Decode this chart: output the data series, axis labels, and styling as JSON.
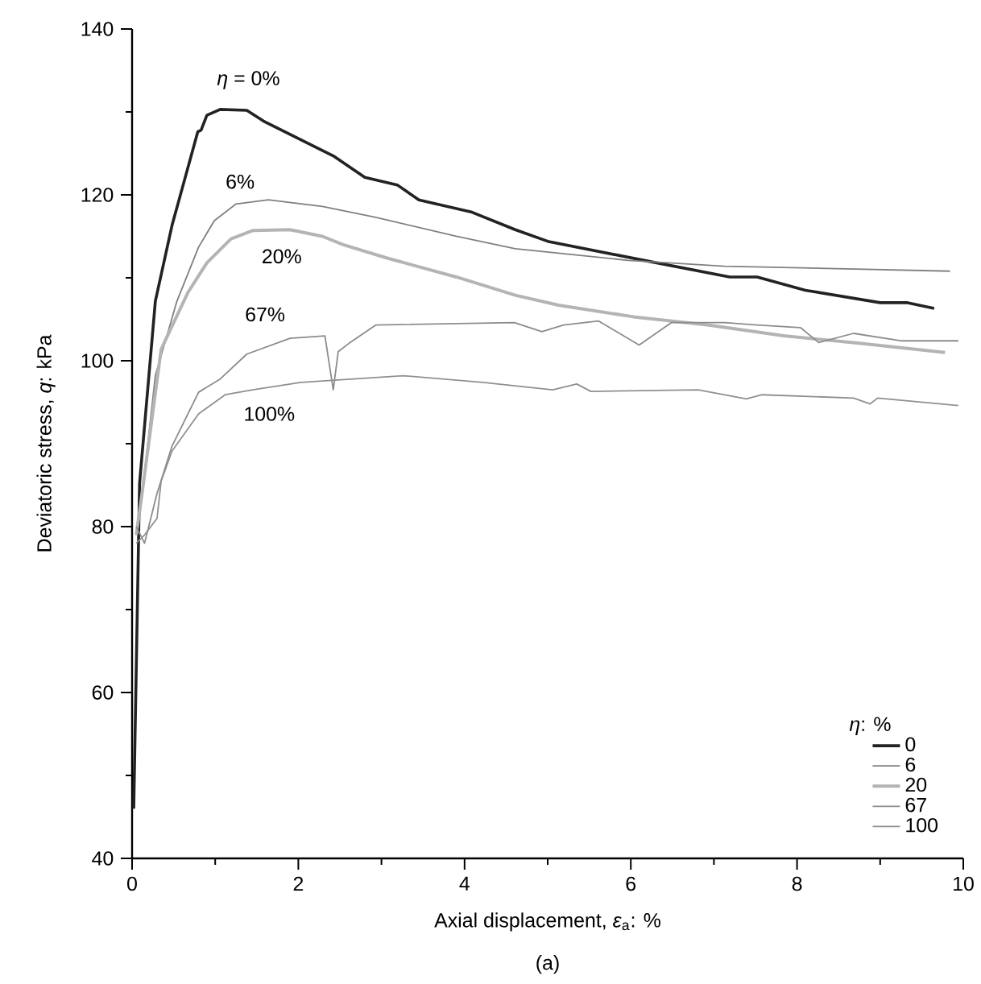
{
  "chart_data": {
    "type": "line",
    "xlabel": "Axial displacement, *ε*$_{a}$: %",
    "ylabel": "Deviatoric stress, *q*: kPa",
    "legend_title": "*η*: %",
    "legend": "bottom right",
    "grid": false,
    "marker": "none",
    "line_style": "solid",
    "xlim": [
      0,
      10
    ],
    "ylim": [
      40,
      140
    ],
    "xticks": [
      0,
      {
        "value": 1,
        "label": null
      },
      2,
      {
        "value": 3,
        "label": null
      },
      4,
      {
        "value": 5,
        "label": null
      },
      6,
      {
        "value": 7,
        "label": null
      },
      8,
      {
        "value": 9,
        "label": null
      },
      10
    ],
    "yticks": [
      40,
      {
        "value": 50,
        "label": null
      },
      60,
      {
        "value": 70,
        "label": null
      },
      80,
      {
        "value": 90,
        "label": null
      },
      100,
      {
        "value": 110,
        "label": null
      },
      120,
      {
        "value": 130,
        "label": null
      },
      140
    ],
    "series": [
      {
        "name": "0",
        "color": "#222222",
        "x": [
          0.02,
          0.09,
          0.28,
          0.48,
          0.79,
          0.83,
          0.9,
          1.06,
          1.38,
          1.58,
          2.42,
          2.8,
          3.19,
          3.45,
          4.09,
          4.61,
          5.0,
          6.16,
          7.19,
          7.52,
          8.1,
          9.0,
          9.33,
          9.65
        ],
        "values": [
          46,
          85.2,
          107.2,
          116.3,
          127.6,
          127.8,
          129.6,
          130.3,
          130.2,
          128.9,
          124.7,
          122.1,
          121.2,
          119.4,
          117.9,
          115.8,
          114.4,
          112.1,
          110.1,
          110.1,
          108.5,
          107.0,
          107.0,
          106.3
        ]
      },
      {
        "name": "6",
        "color": "#808080",
        "x": [
          0.05,
          0.1,
          0.28,
          0.54,
          0.8,
          0.99,
          1.25,
          1.64,
          2.29,
          2.93,
          3.9,
          4.61,
          5.97,
          7.13,
          9.84
        ],
        "values": [
          79,
          82,
          98.2,
          107.2,
          113.7,
          116.9,
          118.9,
          119.4,
          118.6,
          117.3,
          115.0,
          113.5,
          112.1,
          111.4,
          110.8
        ]
      },
      {
        "name": "20",
        "color": "#b4b4b4",
        "x": [
          0.05,
          0.12,
          0.35,
          0.67,
          0.9,
          1.19,
          1.45,
          1.9,
          2.29,
          2.54,
          3.06,
          3.9,
          4.61,
          5.13,
          6.03,
          6.94,
          7.84,
          8.75,
          9.78
        ],
        "values": [
          79,
          84,
          101.4,
          108.2,
          111.8,
          114.7,
          115.7,
          115.8,
          115.0,
          114.0,
          112.4,
          110.1,
          107.9,
          106.7,
          105.3,
          104.3,
          103.0,
          102.1,
          101.0
        ]
      },
      {
        "name": "67",
        "color": "#8c8c8c",
        "x": [
          0.05,
          0.15,
          0.3,
          0.48,
          0.8,
          1.06,
          1.38,
          1.9,
          2.32,
          2.42,
          2.48,
          2.61,
          2.93,
          4.6,
          4.93,
          5.19,
          5.61,
          6.1,
          6.49,
          7.13,
          7.52,
          8.04,
          8.26,
          8.68,
          9.26,
          9.94
        ],
        "values": [
          80,
          78,
          84,
          89.7,
          96.2,
          97.8,
          100.8,
          102.7,
          103.0,
          96.5,
          101.1,
          102.1,
          104.3,
          104.6,
          103.5,
          104.3,
          104.8,
          101.9,
          104.6,
          104.6,
          104.3,
          104.0,
          102.2,
          103.3,
          102.4,
          102.4
        ]
      },
      {
        "name": "100",
        "color": "#909090",
        "x": [
          0.05,
          0.15,
          0.3,
          0.35,
          0.48,
          0.8,
          1.12,
          1.45,
          2.03,
          3.26,
          4.22,
          5.06,
          5.35,
          5.52,
          6.81,
          7.39,
          7.58,
          8.68,
          8.88,
          8.97,
          9.94
        ],
        "values": [
          78,
          79,
          81,
          85.5,
          89.1,
          93.6,
          95.9,
          96.5,
          97.4,
          98.2,
          97.4,
          96.5,
          97.2,
          96.3,
          96.5,
          95.4,
          95.9,
          95.5,
          94.8,
          95.5,
          94.6
        ]
      }
    ],
    "annotations": [
      "(a)",
      "*η* = 0%",
      "6%",
      "20%",
      "67%",
      "100%"
    ]
  }
}
